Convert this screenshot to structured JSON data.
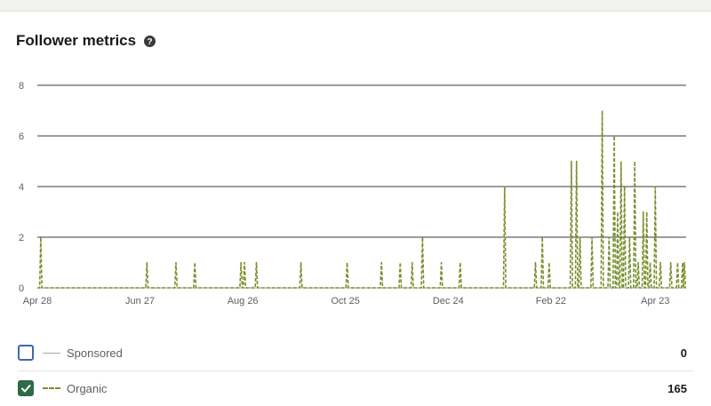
{
  "header": {
    "title": "Follower metrics",
    "help_icon": "question-circle-icon"
  },
  "colors": {
    "organic": "#7a8f2d",
    "sponsored": "#a8a8a8",
    "checkbox_checked": "#2f6b48",
    "checkbox_unchecked_border": "#3f68b6",
    "gridline": "#3a3a3a"
  },
  "chart_data": {
    "type": "line",
    "ylim": [
      0,
      8
    ],
    "y_ticks": [
      0,
      2,
      4,
      6,
      8
    ],
    "x_tick_labels": [
      "Apr 28",
      "Jun 27",
      "Aug 26",
      "Oct 25",
      "Dec 24",
      "Feb 22",
      "Apr 23"
    ],
    "grid": true,
    "series": [
      {
        "name": "Organic",
        "style": "dashed",
        "spikes": [
          {
            "date": "May 10",
            "value": 1
          },
          {
            "date": "Jul 1",
            "value": 1
          },
          {
            "date": "Jul 18",
            "value": 1
          },
          {
            "date": "Jul 29",
            "value": 1
          },
          {
            "date": "Aug 25",
            "value": 1
          },
          {
            "date": "Aug 27",
            "value": 1
          },
          {
            "date": "Sep 3",
            "value": 1
          },
          {
            "date": "Sep 29",
            "value": 1
          },
          {
            "date": "Oct 26",
            "value": 1
          },
          {
            "date": "Nov 15",
            "value": 1
          },
          {
            "date": "Nov 26",
            "value": 1
          },
          {
            "date": "Dec 3",
            "value": 1
          },
          {
            "date": "Dec 9",
            "value": 2
          },
          {
            "date": "Dec 20",
            "value": 1
          },
          {
            "date": "Dec 31",
            "value": 1
          },
          {
            "date": "Jan 26",
            "value": 4
          },
          {
            "date": "Feb 13",
            "value": 1
          },
          {
            "date": "Feb 17",
            "value": 2
          },
          {
            "date": "Feb 21",
            "value": 1
          },
          {
            "date": "Mar 5",
            "value": 5
          },
          {
            "date": "Mar 8",
            "value": 5
          },
          {
            "date": "Mar 10",
            "value": 2
          },
          {
            "date": "Mar 17",
            "value": 2
          },
          {
            "date": "Mar 23",
            "value": 7
          },
          {
            "date": "Mar 27",
            "value": 2
          },
          {
            "date": "Mar 30",
            "value": 6
          },
          {
            "date": "Apr 1",
            "value": 3
          },
          {
            "date": "Apr 3",
            "value": 5
          },
          {
            "date": "Apr 5",
            "value": 4
          },
          {
            "date": "Apr 8",
            "value": 2
          },
          {
            "date": "Apr 11",
            "value": 5
          },
          {
            "date": "Apr 13",
            "value": 1
          },
          {
            "date": "Apr 16",
            "value": 3
          },
          {
            "date": "Apr 18",
            "value": 3
          },
          {
            "date": "Apr 20",
            "value": 1
          },
          {
            "date": "Apr 23",
            "value": 4
          },
          {
            "date": "Apr 26",
            "value": 1
          },
          {
            "date": "Apr 30",
            "value": 2
          },
          {
            "date": "May 2",
            "value": 1
          },
          {
            "date": "May 6",
            "value": 1
          },
          {
            "date": "May 9",
            "value": 1
          }
        ]
      },
      {
        "name": "Sponsored",
        "style": "solid",
        "values": "all zero"
      }
    ]
  },
  "legend": {
    "sponsored": {
      "label": "Sponsored",
      "value": "0",
      "checked": false
    },
    "organic": {
      "label": "Organic",
      "value": "165",
      "checked": true
    }
  }
}
